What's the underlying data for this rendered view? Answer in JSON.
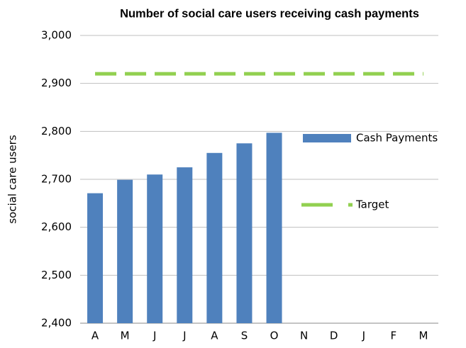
{
  "chart_data": {
    "type": "bar",
    "title": "Number of social care users receiving cash payments",
    "y_label": "social care users",
    "categories": [
      "A",
      "M",
      "J",
      "J",
      "A",
      "S",
      "O",
      "N",
      "D",
      "J",
      "F",
      "M"
    ],
    "series": [
      {
        "name": "Cash Payments",
        "type": "bar",
        "color": "#4f81bd",
        "values": [
          2671,
          2699,
          2710,
          2725,
          2755,
          2775,
          2797,
          null,
          null,
          null,
          null,
          null
        ]
      },
      {
        "name": "Target",
        "type": "line",
        "dashed": true,
        "color": "#92d050",
        "values": [
          2920,
          2920,
          2920,
          2920,
          2920,
          2920,
          2920,
          2920,
          2920,
          2920,
          2920,
          2920
        ]
      }
    ],
    "ylim": [
      2400,
      3000
    ],
    "yticks": [
      {
        "value": 2400,
        "label": "2,400"
      },
      {
        "value": 2500,
        "label": "2,500"
      },
      {
        "value": 2600,
        "label": "2,600"
      },
      {
        "value": 2700,
        "label": "2,700"
      },
      {
        "value": 2800,
        "label": "2,800"
      },
      {
        "value": 2900,
        "label": "2,900"
      },
      {
        "value": 3000,
        "label": "3,000"
      }
    ],
    "grid": true,
    "legend": "right"
  }
}
